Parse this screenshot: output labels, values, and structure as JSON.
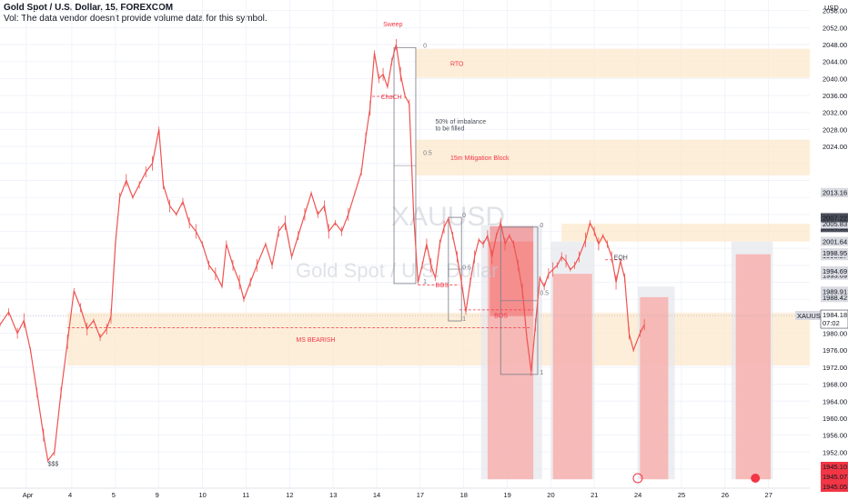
{
  "header": {
    "title": "Gold Spot / U.S. Dollar, 15, FOREXCOM",
    "vol_note": "Vol: The data vendor doesn't provide volume data for this symbol."
  },
  "watermark": {
    "symbol": "XAUUSD",
    "name": "Gold Spot / U.S. Dollar"
  },
  "colors": {
    "candle": "#ef5350",
    "zone_orange": "#fce8cc",
    "zone_red": "#f8a8a5",
    "zone_grey": "#e6e7ec",
    "annotation_red": "#f23645",
    "price_badge": "#f23645",
    "label_dark": "#4a4e59"
  },
  "chart_data": {
    "type": "line",
    "title": "Gold Spot / U.S. Dollar, 15, FOREXCOM",
    "ylabel": "USD",
    "ylim": [
      1943.5,
      2058.5
    ],
    "yticks": [
      1948,
      1952,
      1956,
      1960,
      1964,
      1968,
      1972,
      1976,
      1980,
      1988.42,
      1989.91,
      1993.69,
      1994.69,
      1998.27,
      1998.95,
      2001.64,
      2004.71,
      2004.8,
      2004.93,
      2005.72,
      2005.83,
      2007.22,
      2013.1,
      2013.16,
      2024,
      2028,
      2032,
      2036,
      2040,
      2044,
      2048,
      2052,
      2056
    ],
    "xlim": [
      0,
      18.6
    ],
    "xticks": [
      {
        "x": 0.6,
        "label": "Apr"
      },
      {
        "x": 1.65,
        "label": "4"
      },
      {
        "x": 2.65,
        "label": "5"
      },
      {
        "x": 3.65,
        "label": "9"
      },
      {
        "x": 4.65,
        "label": "10"
      },
      {
        "x": 5.65,
        "label": "11"
      },
      {
        "x": 6.65,
        "label": "12"
      },
      {
        "x": 7.65,
        "label": "13"
      },
      {
        "x": 8.65,
        "label": "14"
      },
      {
        "x": 9.65,
        "label": "17"
      },
      {
        "x": 10.65,
        "label": "18"
      },
      {
        "x": 11.65,
        "label": "19"
      },
      {
        "x": 12.65,
        "label": "20"
      },
      {
        "x": 13.65,
        "label": "21"
      },
      {
        "x": 14.65,
        "label": "24"
      },
      {
        "x": 15.65,
        "label": "25"
      },
      {
        "x": 16.65,
        "label": "26"
      },
      {
        "x": 17.65,
        "label": "27"
      }
    ],
    "series": [
      {
        "points": [
          [
            0.0,
            1982
          ],
          [
            0.2,
            1985
          ],
          [
            0.4,
            1980
          ],
          [
            0.55,
            1983
          ],
          [
            0.7,
            1976
          ],
          [
            0.85,
            1966
          ],
          [
            1.0,
            1956
          ],
          [
            1.1,
            1950
          ],
          [
            1.25,
            1952
          ],
          [
            1.4,
            1966
          ],
          [
            1.55,
            1978
          ],
          [
            1.7,
            1990
          ],
          [
            1.85,
            1986
          ],
          [
            2.0,
            1981
          ],
          [
            2.15,
            1983
          ],
          [
            2.3,
            1979
          ],
          [
            2.45,
            1981
          ],
          [
            2.55,
            1984
          ],
          [
            2.65,
            2001
          ],
          [
            2.75,
            2012
          ],
          [
            2.9,
            2016
          ],
          [
            3.05,
            2012
          ],
          [
            3.2,
            2015
          ],
          [
            3.35,
            2018
          ],
          [
            3.5,
            2020
          ],
          [
            3.65,
            2028
          ],
          [
            3.75,
            2015
          ],
          [
            3.9,
            2010
          ],
          [
            4.05,
            2008
          ],
          [
            4.2,
            2011
          ],
          [
            4.35,
            2006
          ],
          [
            4.5,
            2004
          ],
          [
            4.65,
            2001
          ],
          [
            4.8,
            1996
          ],
          [
            4.95,
            1994
          ],
          [
            5.1,
            1991
          ],
          [
            5.2,
            2001
          ],
          [
            5.35,
            1996
          ],
          [
            5.5,
            1992
          ],
          [
            5.6,
            1988
          ],
          [
            5.75,
            1992
          ],
          [
            5.9,
            1996
          ],
          [
            6.1,
            2001
          ],
          [
            6.25,
            1996
          ],
          [
            6.4,
            2004
          ],
          [
            6.55,
            2006
          ],
          [
            6.7,
            1998
          ],
          [
            6.85,
            2003
          ],
          [
            7.0,
            2008
          ],
          [
            7.15,
            2013
          ],
          [
            7.3,
            2008
          ],
          [
            7.45,
            2010
          ],
          [
            7.55,
            2004
          ],
          [
            7.7,
            2006
          ],
          [
            7.85,
            2004
          ],
          [
            8.0,
            2008
          ],
          [
            8.15,
            2013
          ],
          [
            8.3,
            2018
          ],
          [
            8.4,
            2026
          ],
          [
            8.5,
            2033
          ],
          [
            8.6,
            2046
          ],
          [
            8.7,
            2040
          ],
          [
            8.8,
            2041
          ],
          [
            8.9,
            2038
          ],
          [
            9.0,
            2044
          ],
          [
            9.1,
            2048
          ],
          [
            9.2,
            2041
          ],
          [
            9.3,
            2036
          ],
          [
            9.4,
            2034
          ],
          [
            9.5,
            2008
          ],
          [
            9.6,
            1992
          ],
          [
            9.7,
            1996
          ],
          [
            9.8,
            2001
          ],
          [
            9.9,
            1996
          ],
          [
            10.0,
            1993
          ],
          [
            10.1,
            2001
          ],
          [
            10.2,
            2005
          ],
          [
            10.3,
            2007
          ],
          [
            10.4,
            2003
          ],
          [
            10.5,
            1998
          ],
          [
            10.6,
            1992
          ],
          [
            10.7,
            1985
          ],
          [
            10.8,
            1992
          ],
          [
            10.9,
            1998
          ],
          [
            11.0,
            2002
          ],
          [
            11.1,
            2001
          ],
          [
            11.2,
            2003
          ],
          [
            11.3,
            1998
          ],
          [
            11.4,
            2003
          ],
          [
            11.5,
            2006
          ],
          [
            11.6,
            2001
          ],
          [
            11.7,
            2003
          ],
          [
            11.8,
            2001
          ],
          [
            11.9,
            1996
          ],
          [
            12.0,
            1990
          ],
          [
            12.1,
            1979
          ],
          [
            12.2,
            1971
          ],
          [
            12.3,
            1982
          ],
          [
            12.4,
            1993
          ],
          [
            12.5,
            1991
          ],
          [
            12.6,
            1994
          ],
          [
            12.7,
            1995
          ],
          [
            12.8,
            1996
          ],
          [
            12.9,
            1998
          ],
          [
            13.0,
            1997
          ],
          [
            13.1,
            1995
          ],
          [
            13.2,
            1996
          ],
          [
            13.3,
            1998
          ],
          [
            13.45,
            2002
          ],
          [
            13.55,
            2006
          ],
          [
            13.65,
            2004
          ],
          [
            13.75,
            2001
          ],
          [
            13.85,
            2003
          ],
          [
            13.95,
            2001
          ],
          [
            14.05,
            1998
          ],
          [
            14.15,
            1992
          ],
          [
            14.25,
            1997
          ],
          [
            14.35,
            1993
          ],
          [
            14.45,
            1980
          ],
          [
            14.55,
            1976
          ],
          [
            14.7,
            1980
          ],
          [
            14.8,
            1982
          ]
        ]
      }
    ],
    "last_price": 1984.18,
    "last_price_time": "07:02",
    "lower_price_labels": [
      1945.1,
      1945.07,
      1945.05
    ],
    "zones": [
      {
        "label": "RTO",
        "x0": 9.55,
        "x1": 18.6,
        "y0": 2040.2,
        "y1": 2047.0,
        "kind": "orange"
      },
      {
        "label": "15m Mitigation Block",
        "x0": 9.55,
        "x1": 18.6,
        "y0": 2017.2,
        "y1": 2025.6,
        "kind": "orange"
      },
      {
        "label": "",
        "x0": 12.9,
        "x1": 18.6,
        "y0": 2001.6,
        "y1": 2005.8,
        "kind": "orange"
      },
      {
        "label": "MS BEARISH",
        "x0": 1.55,
        "x1": 18.6,
        "y0": 1972.4,
        "y1": 1984.8,
        "kind": "orange"
      }
    ],
    "annotations": [
      {
        "text": "$$$",
        "x": 1.1,
        "y": 1948.7
      },
      {
        "text": "Sweep",
        "x": 8.8,
        "y": 2052.3
      },
      {
        "text": "ChoCH",
        "x": 8.75,
        "y": 2035.2
      },
      {
        "text": "50% of imbalance",
        "x": 10.0,
        "y": 2029.4
      },
      {
        "text": "to be filled",
        "x": 10.0,
        "y": 2027.8
      },
      {
        "text": "BOS",
        "x": 10.0,
        "y": 1990.8
      },
      {
        "text": "BOS",
        "x": 11.35,
        "y": 1983.7
      },
      {
        "text": "EQH",
        "x": 14.1,
        "y": 1997.4
      },
      {
        "text": "0",
        "x": 9.72,
        "y": 2047.3
      },
      {
        "text": "0.5",
        "x": 9.72,
        "y": 2022.0
      },
      {
        "text": "1",
        "x": 9.72,
        "y": 1991.7
      },
      {
        "text": "0",
        "x": 10.62,
        "y": 2007.3
      },
      {
        "text": "0.5",
        "x": 10.62,
        "y": 1995.0
      },
      {
        "text": "1",
        "x": 10.62,
        "y": 1982.9
      },
      {
        "text": "0",
        "x": 12.4,
        "y": 2005.0
      },
      {
        "text": "0.5",
        "x": 12.4,
        "y": 1989.0
      },
      {
        "text": "1",
        "x": 12.4,
        "y": 1970.3
      }
    ]
  }
}
